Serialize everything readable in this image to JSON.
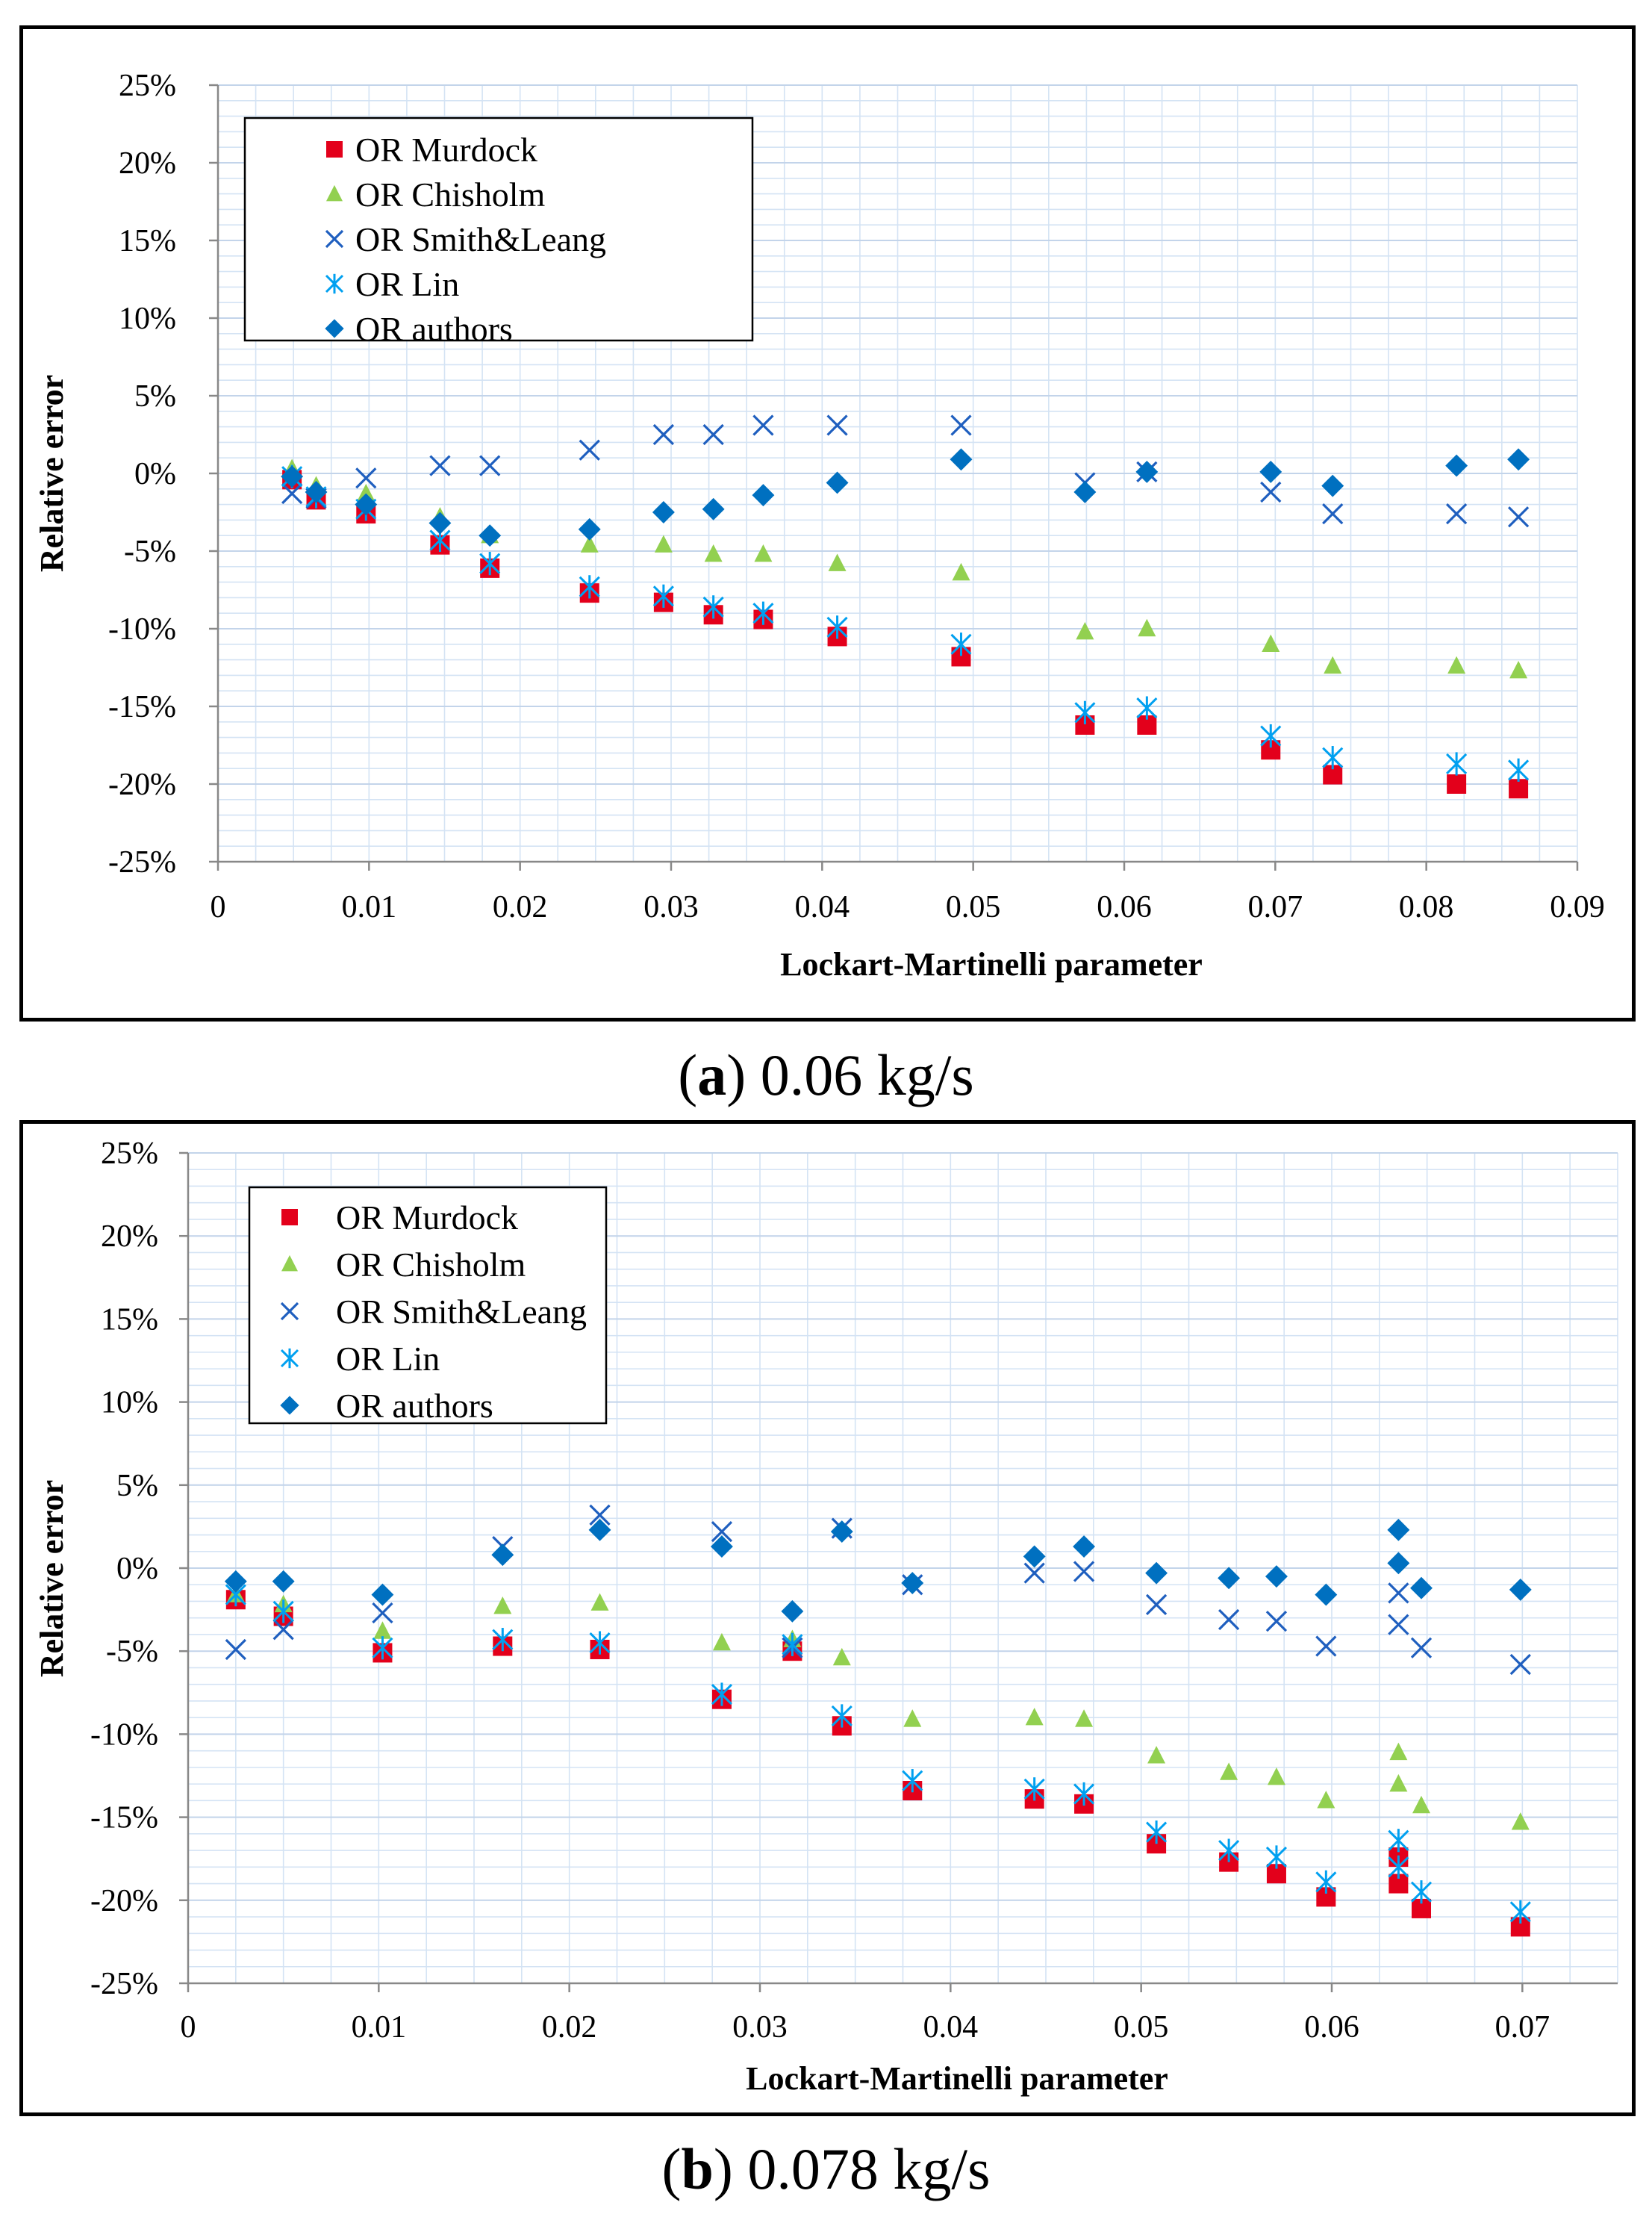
{
  "panels": [
    {
      "caption_letter": "a",
      "caption_text": "0.06 kg/s",
      "chart_data": {
        "type": "scatter",
        "title": "",
        "xlabel": "Lockart-Martinelli parameter",
        "ylabel": "Relative error",
        "xlim": [
          0,
          0.09
        ],
        "ylim": [
          -25,
          25
        ],
        "x_ticks": [
          0,
          0.01,
          0.02,
          0.03,
          0.04,
          0.05,
          0.06,
          0.07,
          0.08,
          0.09
        ],
        "x_tick_labels": [
          "0",
          "0.01",
          "0.02",
          "0.03",
          "0.04",
          "0.05",
          "0.06",
          "0.07",
          "0.08",
          "0.09"
        ],
        "y_ticks": [
          25,
          20,
          15,
          10,
          5,
          0,
          -5,
          -10,
          -15,
          -20,
          -25
        ],
        "y_tick_labels": [
          "25%",
          "20%",
          "15%",
          "10%",
          "5%",
          "0%",
          "-5%",
          "-10%",
          "-15%",
          "-20%",
          "-25%"
        ],
        "grid": true,
        "legend_position": "top-left",
        "series": [
          {
            "name": "OR Murdock",
            "marker": "square",
            "color": "#e3001b",
            "x": [
              0.0049,
              0.0065,
              0.0098,
              0.0147,
              0.018,
              0.0246,
              0.0295,
              0.0328,
              0.0361,
              0.041,
              0.0492,
              0.0574,
              0.0615,
              0.0697,
              0.0738,
              0.082,
              0.0861
            ],
            "y": [
              -0.4,
              -1.7,
              -2.6,
              -4.6,
              -6.1,
              -7.7,
              -8.3,
              -9.1,
              -9.4,
              -10.5,
              -11.8,
              -16.2,
              -16.2,
              -17.8,
              -19.4,
              -20.0,
              -20.3
            ]
          },
          {
            "name": "OR Chisholm",
            "marker": "triangle",
            "color": "#92d050",
            "x": [
              0.0049,
              0.0065,
              0.0098,
              0.0147,
              0.018,
              0.0246,
              0.0295,
              0.0328,
              0.0361,
              0.041,
              0.0492,
              0.0574,
              0.0615,
              0.0697,
              0.0738,
              0.082,
              0.0861
            ],
            "y": [
              0.3,
              -0.8,
              -1.3,
              -2.8,
              -4.0,
              -4.6,
              -4.6,
              -5.2,
              -5.2,
              -5.8,
              -6.4,
              -10.2,
              -10.0,
              -11.0,
              -12.4,
              -12.4,
              -12.7
            ]
          },
          {
            "name": "OR Smith&Leang",
            "marker": "x",
            "color": "#1f5fbf",
            "x": [
              0.0049,
              0.0065,
              0.0098,
              0.0147,
              0.018,
              0.0246,
              0.0295,
              0.0328,
              0.0361,
              0.041,
              0.0492,
              0.0574,
              0.0615,
              0.0697,
              0.0738,
              0.082,
              0.0861
            ],
            "y": [
              -1.3,
              -1.6,
              -0.3,
              0.5,
              0.5,
              1.5,
              2.5,
              2.5,
              3.1,
              3.1,
              3.1,
              -0.6,
              0.1,
              -1.2,
              -2.6,
              -2.6,
              -2.8
            ]
          },
          {
            "name": "OR Lin",
            "marker": "asterisk",
            "color": "#00a0f0",
            "x": [
              0.0049,
              0.0065,
              0.0098,
              0.0147,
              0.018,
              0.0246,
              0.0295,
              0.0328,
              0.0361,
              0.041,
              0.0492,
              0.0574,
              0.0615,
              0.0697,
              0.0738,
              0.082,
              0.0861
            ],
            "y": [
              -0.2,
              -1.5,
              -2.3,
              -4.3,
              -5.8,
              -7.3,
              -7.9,
              -8.6,
              -9.0,
              -9.9,
              -11.0,
              -15.4,
              -15.1,
              -16.9,
              -18.3,
              -18.7,
              -19.1
            ]
          },
          {
            "name": "OR authors",
            "marker": "diamond",
            "color": "#0070c0",
            "x": [
              0.0049,
              0.0065,
              0.0098,
              0.0147,
              0.018,
              0.0246,
              0.0295,
              0.0328,
              0.0361,
              0.041,
              0.0492,
              0.0574,
              0.0615,
              0.0697,
              0.0738,
              0.082,
              0.0861
            ],
            "y": [
              -0.2,
              -1.2,
              -2.0,
              -3.2,
              -4.0,
              -3.6,
              -2.5,
              -2.3,
              -1.4,
              -0.6,
              0.9,
              -1.2,
              0.1,
              0.1,
              -0.8,
              0.5,
              0.9
            ]
          }
        ]
      }
    },
    {
      "caption_letter": "b",
      "caption_text": "0.078 kg/s",
      "chart_data": {
        "type": "scatter",
        "title": "",
        "xlabel": "Lockart-Martinelli parameter",
        "ylabel": "Relative error",
        "xlim": [
          0,
          0.075
        ],
        "ylim": [
          -25,
          25
        ],
        "x_ticks": [
          0,
          0.01,
          0.02,
          0.03,
          0.04,
          0.05,
          0.06,
          0.07
        ],
        "x_tick_labels": [
          "0",
          "0.01",
          "0.02",
          "0.03",
          "0.04",
          "0.05",
          "0.06",
          "0.07"
        ],
        "y_ticks": [
          25,
          20,
          15,
          10,
          5,
          0,
          -5,
          -10,
          -15,
          -20,
          -25
        ],
        "y_tick_labels": [
          "25%",
          "20%",
          "15%",
          "10%",
          "5%",
          "0%",
          "-5%",
          "-10%",
          "-15%",
          "-20%",
          "-25%"
        ],
        "grid": true,
        "legend_position": "top-left",
        "series": [
          {
            "name": "OR Murdock",
            "marker": "square",
            "color": "#e3001b",
            "x": [
              0.0025,
              0.005,
              0.0102,
              0.0165,
              0.0216,
              0.028,
              0.0317,
              0.0343,
              0.038,
              0.0444,
              0.047,
              0.0508,
              0.0546,
              0.0571,
              0.0597,
              0.0635,
              0.0635,
              0.0647,
              0.0699
            ],
            "y": [
              -1.9,
              -2.9,
              -5.1,
              -4.7,
              -4.9,
              -7.9,
              -5.0,
              -9.5,
              -13.4,
              -13.9,
              -14.2,
              -16.6,
              -17.7,
              -18.4,
              -19.8,
              -17.4,
              -19.0,
              -20.5,
              -21.6
            ]
          },
          {
            "name": "OR Chisholm",
            "marker": "triangle",
            "color": "#92d050",
            "x": [
              0.0025,
              0.005,
              0.0102,
              0.0165,
              0.0216,
              0.028,
              0.0317,
              0.0343,
              0.038,
              0.0444,
              0.047,
              0.0508,
              0.0546,
              0.0571,
              0.0597,
              0.0635,
              0.0635,
              0.0647,
              0.0699
            ],
            "y": [
              -1.6,
              -2.2,
              -3.8,
              -2.3,
              -2.1,
              -4.5,
              -4.3,
              -5.4,
              -9.1,
              -9.0,
              -9.1,
              -11.3,
              -12.3,
              -12.6,
              -14.0,
              -11.1,
              -13.0,
              -14.3,
              -15.3
            ]
          },
          {
            "name": "OR Smith&Leang",
            "marker": "x",
            "color": "#1f5fbf",
            "x": [
              0.0025,
              0.005,
              0.0102,
              0.0165,
              0.0216,
              0.028,
              0.0317,
              0.0343,
              0.038,
              0.0444,
              0.047,
              0.0508,
              0.0546,
              0.0571,
              0.0597,
              0.0635,
              0.0635,
              0.0647,
              0.0699
            ],
            "y": [
              -4.9,
              -3.7,
              -2.7,
              1.3,
              3.2,
              2.2,
              -4.8,
              2.4,
              -1.0,
              -0.3,
              -0.2,
              -2.2,
              -3.1,
              -3.2,
              -4.7,
              -1.5,
              -3.4,
              -4.8,
              -5.8
            ]
          },
          {
            "name": "OR Lin",
            "marker": "asterisk",
            "color": "#00a0f0",
            "x": [
              0.0025,
              0.005,
              0.0102,
              0.0165,
              0.0216,
              0.028,
              0.0317,
              0.0343,
              0.038,
              0.0444,
              0.047,
              0.0508,
              0.0546,
              0.0571,
              0.0597,
              0.0635,
              0.0635,
              0.0647,
              0.0699
            ],
            "y": [
              -1.6,
              -2.6,
              -4.8,
              -4.3,
              -4.5,
              -7.6,
              -4.6,
              -8.9,
              -12.8,
              -13.3,
              -13.6,
              -15.9,
              -17.0,
              -17.4,
              -18.9,
              -16.4,
              -18.0,
              -19.5,
              -20.7
            ]
          },
          {
            "name": "OR authors",
            "marker": "diamond",
            "color": "#0070c0",
            "x": [
              0.0025,
              0.005,
              0.0102,
              0.0165,
              0.0216,
              0.028,
              0.0317,
              0.0343,
              0.038,
              0.0444,
              0.047,
              0.0508,
              0.0546,
              0.0571,
              0.0597,
              0.0635,
              0.0635,
              0.0647,
              0.0699
            ],
            "y": [
              -0.8,
              -0.8,
              -1.6,
              0.8,
              2.3,
              1.3,
              -2.6,
              2.2,
              -0.9,
              0.7,
              1.3,
              -0.3,
              -0.6,
              -0.5,
              -1.6,
              2.3,
              0.3,
              -1.2,
              -1.3
            ]
          }
        ]
      }
    }
  ]
}
